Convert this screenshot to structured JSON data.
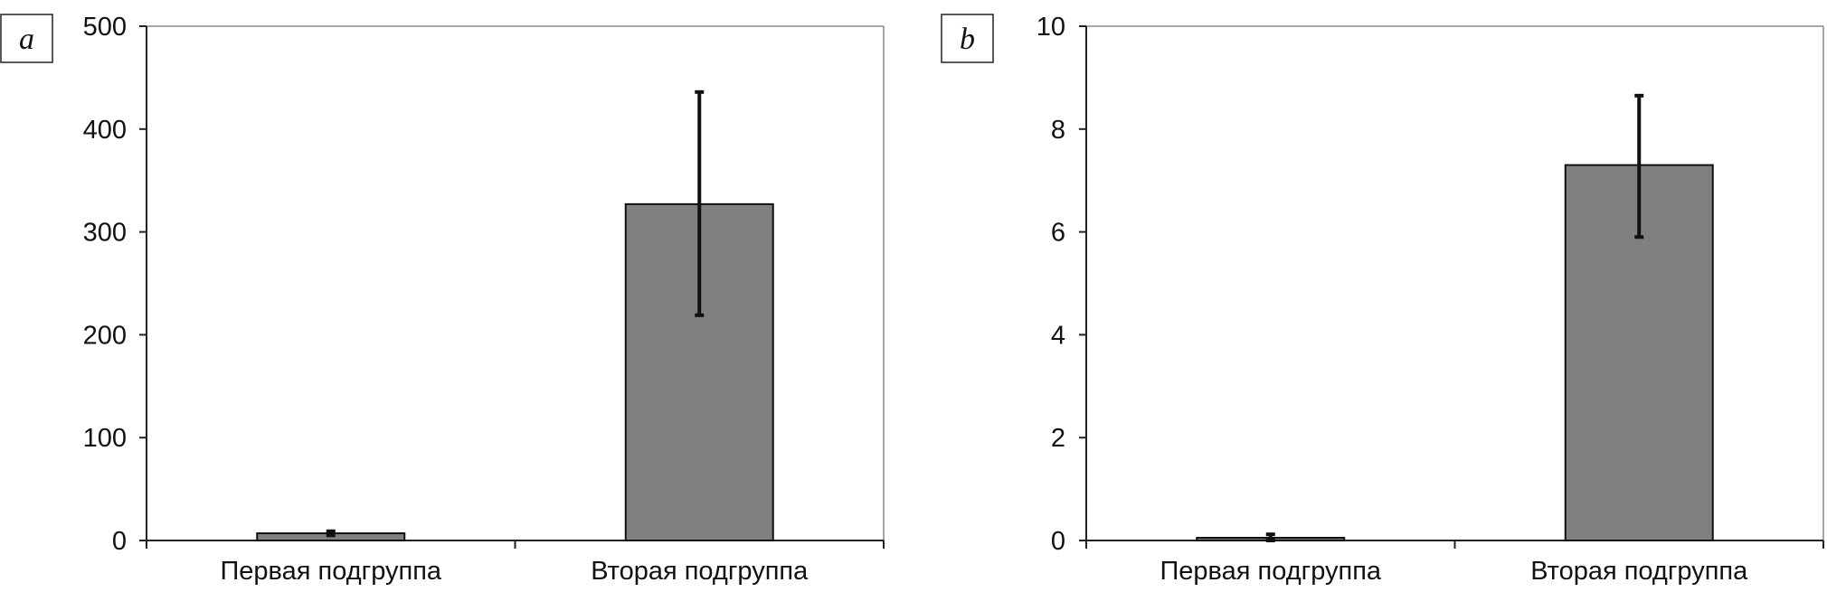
{
  "chart_data": [
    {
      "type": "bar",
      "panel_label": "a",
      "categories": [
        "Первая подгруппа",
        "Вторая подгруппа"
      ],
      "values": [
        7,
        327
      ],
      "error_low": [
        5,
        219
      ],
      "error_high": [
        9,
        436
      ],
      "ylim": [
        0,
        500
      ],
      "yticks": [
        "0",
        "100",
        "200",
        "300",
        "400",
        "500"
      ],
      "title": "",
      "xlabel": "",
      "ylabel": "",
      "grid": false,
      "bar_color": "#808080"
    },
    {
      "type": "bar",
      "panel_label": "b",
      "categories": [
        "Первая подгруппа",
        "Вторая подгруппа"
      ],
      "values": [
        0.05,
        7.3
      ],
      "error_low": [
        0.0,
        5.9
      ],
      "error_high": [
        0.12,
        8.65
      ],
      "ylim": [
        0,
        10
      ],
      "yticks": [
        "0",
        "2",
        "4",
        "6",
        "8",
        "10"
      ],
      "title": "",
      "xlabel": "",
      "ylabel": "",
      "grid": false,
      "bar_color": "#808080"
    }
  ]
}
